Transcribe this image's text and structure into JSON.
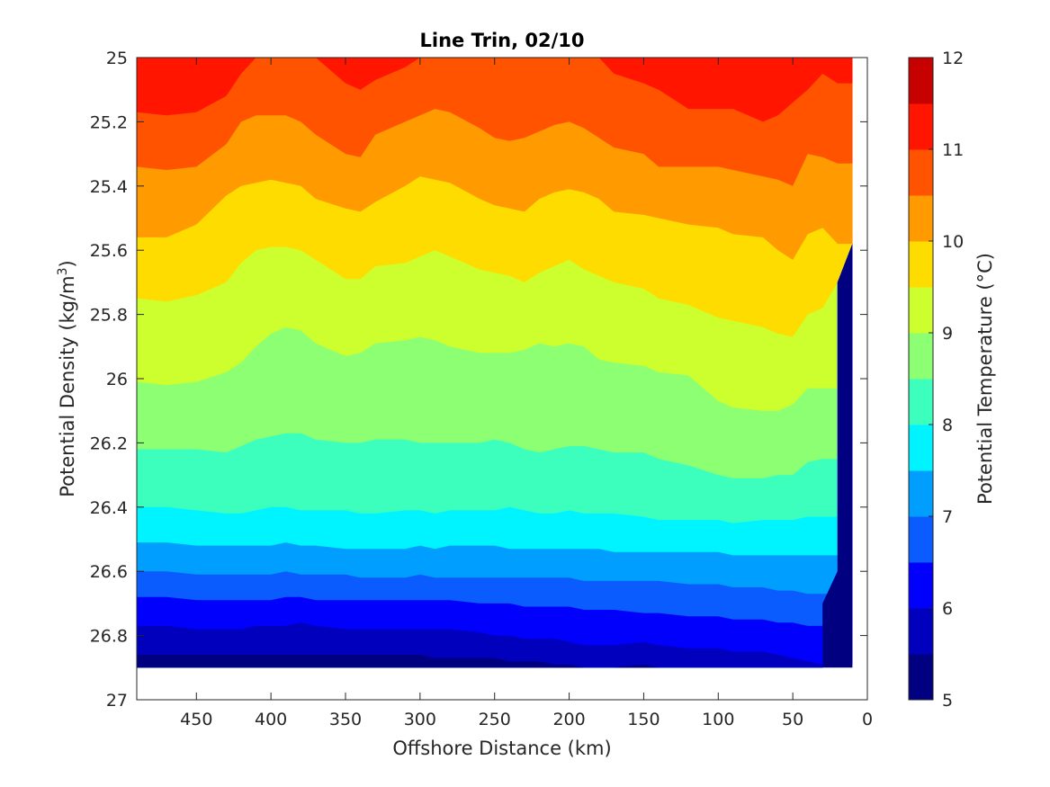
{
  "chart_data": {
    "type": "contour",
    "title": "Line Trin, 02/10",
    "xlabel": "Offshore Distance (km)",
    "ylabel_main": "Potential Density (kg/m",
    "ylabel_sup": "3",
    "ylabel_end": ")",
    "xlim": [
      490,
      0
    ],
    "ylim": [
      25,
      27
    ],
    "x_reversed": true,
    "y_reversed": true,
    "xticks": [
      "450",
      "400",
      "350",
      "300",
      "250",
      "200",
      "150",
      "100",
      "50",
      "0"
    ],
    "xtick_values": [
      450,
      400,
      350,
      300,
      250,
      200,
      150,
      100,
      50,
      0
    ],
    "yticks": [
      "25",
      "25.2",
      "25.4",
      "25.6",
      "25.8",
      "26",
      "26.2",
      "26.4",
      "26.6",
      "26.8",
      "27"
    ],
    "ytick_values": [
      25,
      25.2,
      25.4,
      25.6,
      25.8,
      26,
      26.2,
      26.4,
      26.6,
      26.8,
      27
    ],
    "colorbar": {
      "label": "Potential Temperature (°C)",
      "limits": [
        5,
        12
      ],
      "ticks": [
        "5",
        "6",
        "7",
        "8",
        "9",
        "10",
        "11",
        "12"
      ],
      "tick_values": [
        5,
        6,
        7,
        8,
        9,
        10,
        11,
        12
      ],
      "level_step": 0.5,
      "colors": [
        "#000080",
        "#0000bd",
        "#0000fc",
        "#0a5cff",
        "#009fff",
        "#00f4ff",
        "#3dffbd",
        "#8cff73",
        "#cdff2f",
        "#ffdc00",
        "#ff9a00",
        "#ff5300",
        "#ff1500",
        "#c70000"
      ]
    },
    "grid": false,
    "x_stations": [
      490,
      470,
      450,
      430,
      420,
      410,
      400,
      390,
      380,
      370,
      350,
      340,
      330,
      310,
      300,
      290,
      280,
      260,
      250,
      240,
      230,
      220,
      210,
      200,
      190,
      180,
      170,
      150,
      140,
      120,
      100,
      90,
      70,
      60,
      50,
      40,
      30,
      20,
      10
    ],
    "boundaries": [
      {
        "level": 11.5,
        "y": [
          25.0,
          25.0,
          25.0,
          25.0,
          25.0,
          25.0,
          25.0,
          25.0,
          25.0,
          25.0,
          25.0,
          25.0,
          25.0,
          25.0,
          25.0,
          25.0,
          25.0,
          25.0,
          25.0,
          25.0,
          25.0,
          25.0,
          25.0,
          25.0,
          25.0,
          25.0,
          25.0,
          25.0,
          25.0,
          25.0,
          25.0,
          25.0,
          25.0,
          25.0,
          25.0,
          25.0,
          25.0,
          25.0,
          25.0
        ]
      },
      {
        "level": 11.0,
        "y": [
          25.0,
          25.0,
          25.0,
          25.0,
          25.0,
          25.0,
          25.0,
          25.0,
          25.0,
          25.0,
          25.0,
          25.0,
          25.0,
          25.0,
          25.0,
          25.0,
          25.0,
          25.0,
          25.0,
          25.0,
          25.0,
          25.0,
          25.0,
          25.0,
          25.0,
          25.0,
          25.0,
          25.0,
          25.0,
          25.0,
          25.0,
          25.0,
          25.0,
          25.0,
          25.0,
          25.0,
          25.0,
          25.0,
          25.0
        ]
      },
      {
        "level": 10.5,
        "y": [
          25.17,
          25.18,
          25.17,
          25.12,
          25.05,
          25.0,
          25.0,
          25.0,
          25.0,
          25.0,
          25.08,
          25.1,
          25.07,
          25.03,
          25.0,
          25.0,
          25.0,
          25.0,
          25.0,
          25.0,
          25.0,
          25.0,
          25.0,
          25.0,
          25.0,
          25.0,
          25.05,
          25.08,
          25.1,
          25.16,
          25.16,
          25.16,
          25.2,
          25.18,
          25.14,
          25.1,
          25.05,
          25.08,
          25.08
        ]
      },
      {
        "level": 10.0,
        "y": [
          25.34,
          25.35,
          25.34,
          25.27,
          25.2,
          25.18,
          25.18,
          25.18,
          25.2,
          25.24,
          25.3,
          25.31,
          25.24,
          25.2,
          25.18,
          25.16,
          25.17,
          25.22,
          25.25,
          25.26,
          25.25,
          25.23,
          25.21,
          25.2,
          25.22,
          25.25,
          25.28,
          25.3,
          25.34,
          25.34,
          25.34,
          25.35,
          25.37,
          25.38,
          25.4,
          25.3,
          25.31,
          25.33,
          25.33
        ]
      },
      {
        "level": 9.5,
        "y": [
          25.56,
          25.56,
          25.52,
          25.43,
          25.4,
          25.39,
          25.38,
          25.39,
          25.4,
          25.44,
          25.47,
          25.48,
          25.45,
          25.4,
          25.37,
          25.38,
          25.39,
          25.44,
          25.46,
          25.47,
          25.48,
          25.44,
          25.42,
          25.41,
          25.42,
          25.44,
          25.48,
          25.49,
          25.5,
          25.52,
          25.53,
          25.55,
          25.56,
          25.6,
          25.63,
          25.55,
          25.53,
          25.58,
          25.58
        ]
      },
      {
        "level": 9.0,
        "y": [
          25.75,
          25.76,
          25.74,
          25.7,
          25.64,
          25.6,
          25.59,
          25.59,
          25.6,
          25.63,
          25.69,
          25.69,
          25.65,
          25.64,
          25.62,
          25.6,
          25.62,
          25.66,
          25.67,
          25.68,
          25.7,
          25.67,
          25.65,
          25.63,
          25.66,
          25.68,
          25.7,
          25.72,
          25.75,
          25.77,
          25.81,
          25.82,
          25.84,
          25.86,
          25.87,
          25.8,
          25.78,
          25.7,
          25.6
        ]
      },
      {
        "level": 8.5,
        "y": [
          26.01,
          26.02,
          26.01,
          25.98,
          25.95,
          25.9,
          25.86,
          25.84,
          25.85,
          25.89,
          25.93,
          25.92,
          25.89,
          25.88,
          25.87,
          25.88,
          25.9,
          25.92,
          25.92,
          25.92,
          25.91,
          25.89,
          25.9,
          25.89,
          25.9,
          25.94,
          25.95,
          25.96,
          25.98,
          25.99,
          26.07,
          26.09,
          26.1,
          26.1,
          26.08,
          26.03,
          26.03,
          26.03,
          26.03
        ]
      },
      {
        "level": 8.0,
        "y": [
          26.22,
          26.22,
          26.22,
          26.23,
          26.21,
          26.19,
          26.18,
          26.17,
          26.17,
          26.19,
          26.2,
          26.2,
          26.19,
          26.19,
          26.2,
          26.2,
          26.2,
          26.2,
          26.19,
          26.2,
          26.22,
          26.23,
          26.22,
          26.21,
          26.21,
          26.22,
          26.23,
          26.23,
          26.25,
          26.27,
          26.3,
          26.31,
          26.31,
          26.3,
          26.3,
          26.26,
          26.25,
          26.25,
          26.25
        ]
      },
      {
        "level": 7.5,
        "y": [
          26.4,
          26.4,
          26.41,
          26.42,
          26.42,
          26.41,
          26.4,
          26.4,
          26.41,
          26.41,
          26.41,
          26.42,
          26.42,
          26.41,
          26.41,
          26.42,
          26.41,
          26.41,
          26.41,
          26.4,
          26.41,
          26.42,
          26.42,
          26.41,
          26.42,
          26.42,
          26.42,
          26.43,
          26.44,
          26.44,
          26.44,
          26.45,
          26.44,
          26.44,
          26.44,
          26.43,
          26.43,
          26.43,
          26.43
        ]
      },
      {
        "level": 7.0,
        "y": [
          26.51,
          26.51,
          26.52,
          26.52,
          26.52,
          26.52,
          26.52,
          26.51,
          26.52,
          26.52,
          26.53,
          26.53,
          26.53,
          26.53,
          26.52,
          26.53,
          26.52,
          26.52,
          26.52,
          26.53,
          26.53,
          26.53,
          26.53,
          26.53,
          26.53,
          26.53,
          26.54,
          26.54,
          26.54,
          26.54,
          26.54,
          26.55,
          26.55,
          26.55,
          26.55,
          26.55,
          26.55,
          26.55,
          26.55
        ]
      },
      {
        "level": 6.5,
        "y": [
          26.6,
          26.6,
          26.61,
          26.61,
          26.61,
          26.61,
          26.61,
          26.6,
          26.61,
          26.61,
          26.61,
          26.62,
          26.62,
          26.62,
          26.61,
          26.62,
          26.62,
          26.62,
          26.62,
          26.62,
          26.62,
          26.62,
          26.62,
          26.62,
          26.63,
          26.63,
          26.63,
          26.63,
          26.63,
          26.64,
          26.64,
          26.65,
          26.65,
          26.66,
          26.66,
          26.67,
          26.67,
          26.67,
          26.67
        ]
      },
      {
        "level": 6.0,
        "y": [
          26.68,
          26.68,
          26.69,
          26.69,
          26.69,
          26.69,
          26.69,
          26.68,
          26.68,
          26.69,
          26.69,
          26.69,
          26.69,
          26.69,
          26.69,
          26.69,
          26.69,
          26.7,
          26.7,
          26.7,
          26.71,
          26.71,
          26.71,
          26.71,
          26.72,
          26.72,
          26.72,
          26.73,
          26.73,
          26.74,
          26.74,
          26.75,
          26.75,
          26.76,
          26.76,
          26.77,
          26.77,
          26.77,
          26.77
        ]
      },
      {
        "level": 5.5,
        "y": [
          26.77,
          26.77,
          26.78,
          26.78,
          26.78,
          26.77,
          26.77,
          26.77,
          26.76,
          26.77,
          26.78,
          26.78,
          26.78,
          26.78,
          26.78,
          26.78,
          26.78,
          26.79,
          26.8,
          26.8,
          26.81,
          26.81,
          26.81,
          26.82,
          26.83,
          26.83,
          26.83,
          26.82,
          26.83,
          26.84,
          26.84,
          26.85,
          26.85,
          26.86,
          26.87,
          26.88,
          26.89,
          26.89,
          26.89
        ]
      },
      {
        "level": 5.0,
        "y": [
          26.86,
          26.86,
          26.86,
          26.86,
          26.86,
          26.86,
          26.86,
          26.86,
          26.86,
          26.86,
          26.86,
          26.86,
          26.86,
          26.86,
          26.86,
          26.87,
          26.87,
          26.87,
          26.87,
          26.88,
          26.88,
          26.88,
          26.89,
          26.89,
          26.9,
          26.9,
          26.9,
          26.89,
          26.9,
          26.9,
          26.9,
          26.9,
          26.9,
          26.9,
          26.9,
          26.9,
          26.9,
          26.9,
          26.9
        ]
      }
    ],
    "data_bottom": 26.9,
    "right_edge": [
      {
        "x": 10,
        "y": 25.0
      },
      {
        "x": 10,
        "y": 25.58
      },
      {
        "x": 20,
        "y": 25.7
      },
      {
        "x": 20,
        "y": 26.6
      },
      {
        "x": 30,
        "y": 26.7
      },
      {
        "x": 30,
        "y": 26.9
      }
    ]
  }
}
